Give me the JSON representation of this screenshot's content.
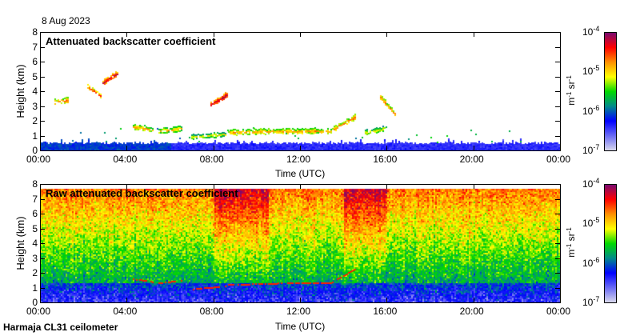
{
  "date": "8 Aug 2023",
  "station": "Harmaja CL31 ceilometer",
  "colors": {
    "colormap": [
      "#d8d8ec",
      "#6a6af4",
      "#0000ff",
      "#008a8a",
      "#00d800",
      "#ffff00",
      "#ff9000",
      "#ff0000",
      "#7a0a70"
    ]
  },
  "chart_data": [
    {
      "type": "heatmap",
      "title": "Attenuated backscatter coefficient",
      "xlabel": "Time (UTC)",
      "ylabel": "Height (km)",
      "xlim": [
        0,
        24
      ],
      "ylim": [
        0,
        8
      ],
      "x_ticks": [
        "00:00",
        "04:00",
        "08:00",
        "12:00",
        "16:00",
        "20:00",
        "00:00"
      ],
      "y_ticks": [
        "0",
        "1",
        "2",
        "3",
        "4",
        "5",
        "6",
        "7",
        "8"
      ],
      "colorbar": {
        "unit_base": [
          "m",
          "sr"
        ],
        "unit_exp": [
          "-1",
          "-1"
        ],
        "ticks": [
          "-7",
          "-6",
          "-5",
          "-4"
        ],
        "range_log10": [
          -7,
          -4
        ]
      },
      "boundary_layer_top_km": 0.5,
      "cloud_layers": [
        {
          "t0": 0.7,
          "t1": 1.3,
          "h0": 3.3,
          "h1": 3.4,
          "log10": -4.6
        },
        {
          "t0": 2.2,
          "t1": 2.8,
          "h0": 4.3,
          "h1": 3.7,
          "log10": -4.4
        },
        {
          "t0": 2.9,
          "t1": 3.6,
          "h0": 4.6,
          "h1": 5.2,
          "log10": -4.2
        },
        {
          "t0": 7.9,
          "t1": 8.7,
          "h0": 3.1,
          "h1": 3.8,
          "log10": -4.1
        },
        {
          "t0": 4.3,
          "t1": 5.2,
          "h0": 1.6,
          "h1": 1.4,
          "log10": -4.7
        },
        {
          "t0": 5.5,
          "t1": 6.6,
          "h0": 1.3,
          "h1": 1.5,
          "log10": -4.8
        },
        {
          "t0": 7.0,
          "t1": 8.6,
          "h0": 0.9,
          "h1": 1.1,
          "log10": -5.0
        },
        {
          "t0": 8.7,
          "t1": 11.0,
          "h0": 1.2,
          "h1": 1.3,
          "log10": -4.7
        },
        {
          "t0": 11.0,
          "t1": 13.5,
          "h0": 1.3,
          "h1": 1.3,
          "log10": -4.7
        },
        {
          "t0": 13.5,
          "t1": 14.6,
          "h0": 1.4,
          "h1": 2.3,
          "log10": -4.6
        },
        {
          "t0": 15.7,
          "t1": 16.4,
          "h0": 3.6,
          "h1": 2.4,
          "log10": -4.6
        },
        {
          "t0": 15.0,
          "t1": 16.0,
          "h0": 1.2,
          "h1": 1.5,
          "log10": -5.0
        }
      ]
    },
    {
      "type": "heatmap",
      "title": "Raw attenuated backscatter coefficient",
      "xlabel": "Time (UTC)",
      "ylabel": "Height (km)",
      "xlim": [
        0,
        24
      ],
      "ylim": [
        0,
        8
      ],
      "x_ticks": [
        "00:00",
        "04:00",
        "08:00",
        "12:00",
        "16:00",
        "20:00",
        "00:00"
      ],
      "y_ticks": [
        "0",
        "1",
        "2",
        "3",
        "4",
        "5",
        "6",
        "7",
        "8"
      ],
      "colorbar": {
        "unit_base": [
          "m",
          "sr"
        ],
        "unit_exp": [
          "-1",
          "-1"
        ],
        "ticks": [
          "-7",
          "-6",
          "-5",
          "-4"
        ],
        "range_log10": [
          -7,
          -4
        ]
      },
      "data_top_km": 7.7,
      "enhanced_periods": [
        [
          8,
          10.5
        ],
        [
          14,
          16
        ]
      ]
    }
  ]
}
